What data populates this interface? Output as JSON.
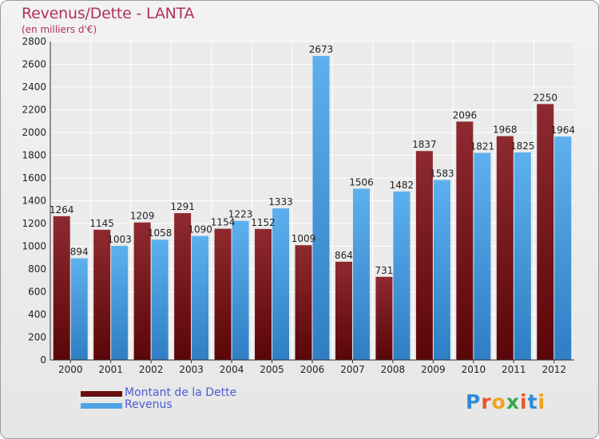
{
  "title": "Revenus/Dette - LANTA",
  "subtitle": "(en milliers d'€)",
  "logo": {
    "letters": [
      "P",
      "r",
      "o",
      "x",
      "i",
      "t",
      "i"
    ],
    "colors": [
      "#2e8bd8",
      "#e8562a",
      "#f0a21a",
      "#3aa64c",
      "#e8562a",
      "#2e8bd8",
      "#f0a21a"
    ]
  },
  "chart_data": {
    "type": "bar",
    "title": "Revenus/Dette - LANTA",
    "subtitle": "(en milliers d'€)",
    "categories": [
      "2000",
      "2001",
      "2002",
      "2003",
      "2004",
      "2005",
      "2006",
      "2007",
      "2008",
      "2009",
      "2010",
      "2011",
      "2012"
    ],
    "series": [
      {
        "name": "Montant de la Dette",
        "color": "#7a1216",
        "values": [
          1264,
          1145,
          1209,
          1291,
          1154,
          1152,
          1009,
          864,
          731,
          1837,
          2096,
          1968,
          2250
        ]
      },
      {
        "name": "Revenus",
        "color": "#4ea3e6",
        "values": [
          894,
          1003,
          1058,
          1090,
          1223,
          1333,
          2673,
          1506,
          1482,
          1583,
          1821,
          1825,
          1964
        ]
      }
    ],
    "ylim": [
      0,
      2800
    ],
    "yticks": [
      0,
      200,
      400,
      600,
      800,
      1000,
      1200,
      1400,
      1600,
      1800,
      2000,
      2200,
      2400,
      2600,
      2800
    ],
    "grid": true,
    "legend": "bottom-left"
  }
}
